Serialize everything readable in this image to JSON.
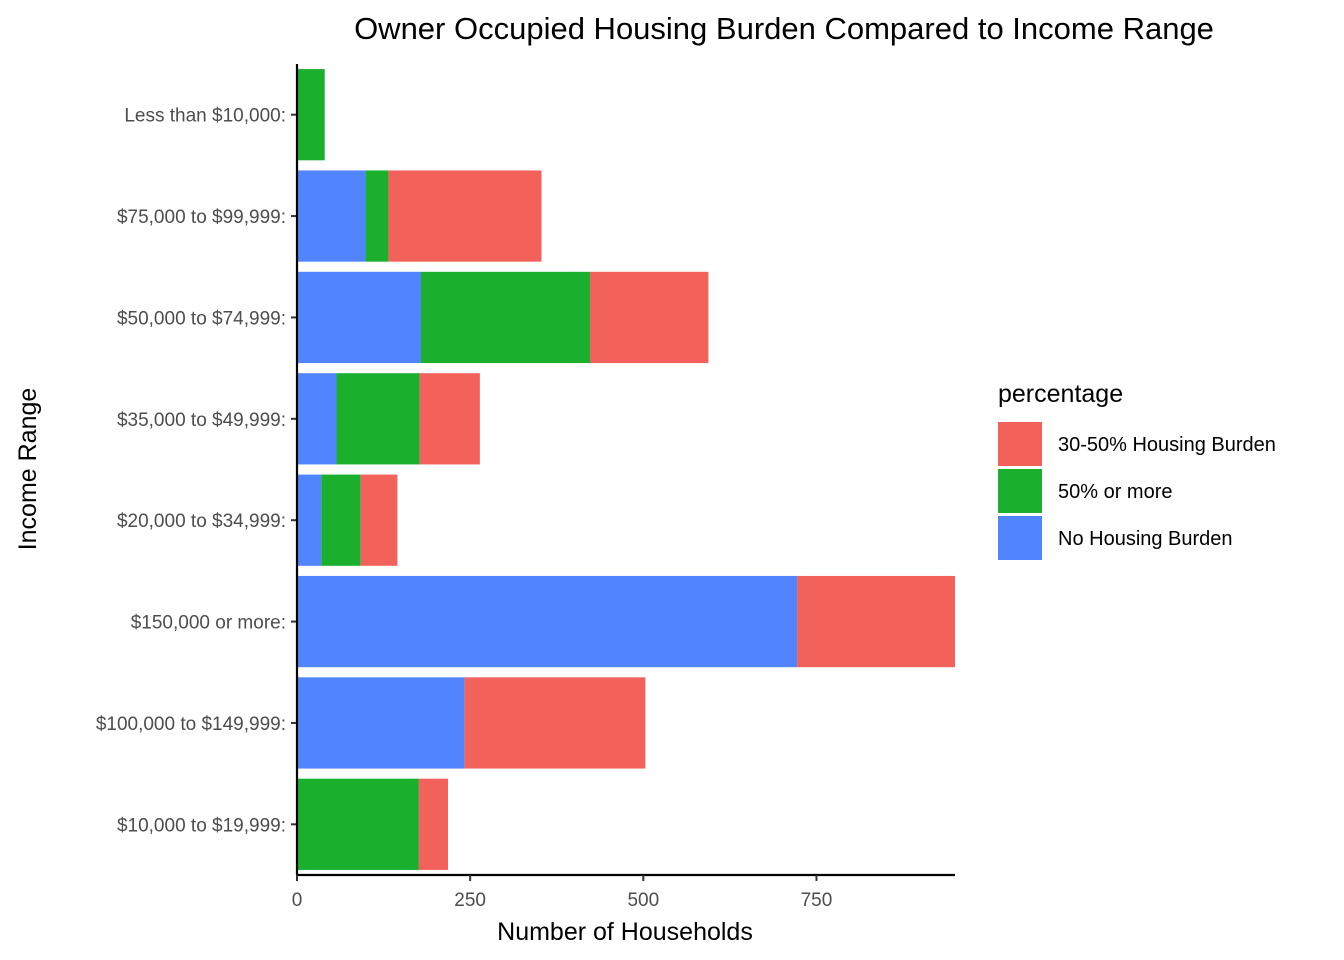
{
  "chart_data": {
    "type": "bar",
    "orientation": "horizontal",
    "stacked": true,
    "title": "Owner Occupied Housing Burden Compared to Income Range",
    "xlabel": "Number of Households",
    "ylabel": "Income Range",
    "xlim": [
      0,
      950
    ],
    "xticks": [
      0,
      250,
      500,
      750
    ],
    "grid": false,
    "legend": {
      "title": "percentage",
      "placement": "right"
    },
    "categories": [
      "Less than $10,000:",
      "$75,000 to $99,999:",
      "$50,000 to $74,999:",
      "$35,000 to $49,999:",
      "$20,000 to $34,999:",
      "$150,000 or more:",
      "$100,000 to $149,999:",
      "$10,000 to $19,999:"
    ],
    "series": [
      {
        "name": "No Housing Burden",
        "color": "#5085FF",
        "values": [
          0,
          99,
          179,
          57,
          35,
          722,
          242,
          0
        ]
      },
      {
        "name": "50% or more",
        "color": "#1AB02E",
        "values": [
          40,
          33,
          244,
          120,
          57,
          0,
          0,
          176
        ]
      },
      {
        "name": "30-50% Housing Burden",
        "color": "#F2625B",
        "values": [
          0,
          221,
          171,
          87,
          53,
          228,
          261,
          42
        ]
      }
    ],
    "legend_order": [
      "30-50% Housing Burden",
      "50% or more",
      "No Housing Burden"
    ]
  }
}
